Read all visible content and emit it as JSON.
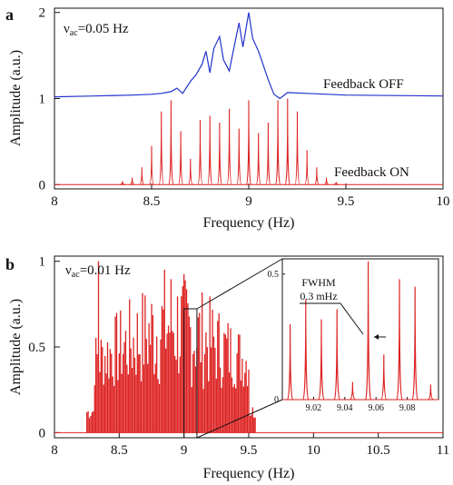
{
  "chart_data": [
    {
      "panel": "a",
      "type": "line",
      "xlabel": "Frequency (Hz)",
      "ylabel": "Amplitude (a.u.)",
      "xlim": [
        8,
        10
      ],
      "ylim": [
        -0.05,
        2.05
      ],
      "x_ticks": [
        8,
        8.5,
        9,
        9.5,
        10
      ],
      "x_tick_labels": [
        "8",
        "8.5",
        "9",
        "9.5",
        "10"
      ],
      "y_ticks": [
        0,
        1,
        2
      ],
      "y_tick_labels": [
        "0",
        "1",
        "2"
      ],
      "annotation_prefix": "ν",
      "annotation_sub": "ac",
      "annotation_suffix": "=0.05 Hz",
      "series": [
        {
          "name": "Feedback OFF",
          "color": "#2233cc",
          "x": [
            8.0,
            8.2,
            8.4,
            8.5,
            8.55,
            8.6,
            8.63,
            8.66,
            8.7,
            8.73,
            8.76,
            8.78,
            8.8,
            8.82,
            8.85,
            8.87,
            8.9,
            8.92,
            8.95,
            8.97,
            9.0,
            9.02,
            9.05,
            9.07,
            9.1,
            9.13,
            9.16,
            9.2,
            9.3,
            9.5,
            10.0
          ],
          "y": [
            1.02,
            1.03,
            1.04,
            1.05,
            1.06,
            1.08,
            1.12,
            1.06,
            1.2,
            1.28,
            1.4,
            1.55,
            1.3,
            1.58,
            1.72,
            1.45,
            1.32,
            1.55,
            1.88,
            1.6,
            2.0,
            1.7,
            1.55,
            1.42,
            1.22,
            1.05,
            1.0,
            1.07,
            1.06,
            1.04,
            1.03
          ]
        },
        {
          "name": "Feedback ON",
          "color": "#dd2222",
          "peaks_x": [
            8.35,
            8.4,
            8.45,
            8.5,
            8.55,
            8.6,
            8.65,
            8.7,
            8.75,
            8.8,
            8.85,
            8.9,
            8.95,
            9.0,
            9.05,
            9.1,
            9.15,
            9.2,
            9.25,
            9.3,
            9.35,
            9.4,
            9.45
          ],
          "peaks_y": [
            0.04,
            0.08,
            0.2,
            0.45,
            0.85,
            0.98,
            0.62,
            0.3,
            0.75,
            0.8,
            0.72,
            0.88,
            0.65,
            0.98,
            0.6,
            0.72,
            0.98,
            1.0,
            0.85,
            0.4,
            0.2,
            0.08,
            0.03
          ]
        }
      ]
    },
    {
      "panel": "b",
      "type": "line",
      "xlabel": "Frequency (Hz)",
      "ylabel": "Amplitude (a.u.)",
      "xlim": [
        8,
        11
      ],
      "ylim": [
        -0.03,
        1.03
      ],
      "x_ticks": [
        8,
        8.5,
        9,
        9.5,
        10,
        10.5,
        11
      ],
      "x_tick_labels": [
        "8",
        "8.5",
        "9",
        "9.5",
        "10",
        "10.5",
        "11"
      ],
      "y_ticks": [
        0,
        0.5,
        1
      ],
      "y_tick_labels": [
        "0",
        "0.5",
        "1"
      ],
      "annotation_prefix": "ν",
      "annotation_sub": "ac",
      "annotation_suffix": "=0.01 Hz",
      "series": [
        {
          "color": "#dd2222",
          "range": [
            8.25,
            9.55
          ],
          "spacing": 0.01,
          "envelope_note": "dense comb of lines, amplitudes 0.2–1.0"
        }
      ],
      "highlight_box": [
        9.0,
        9.1
      ],
      "inset": {
        "xlim": [
          9.0,
          9.1
        ],
        "ylim": [
          0,
          0.55
        ],
        "x_ticks": [
          9.02,
          9.04,
          9.06,
          9.08
        ],
        "x_tick_labels": [
          "9.02",
          "9.04",
          "9.06",
          "9.08"
        ],
        "y_ticks": [
          0,
          0.5
        ],
        "y_tick_labels": [
          "0",
          "0.5"
        ],
        "peaks_x": [
          9.005,
          9.015,
          9.025,
          9.035,
          9.045,
          9.055,
          9.065,
          9.075,
          9.085,
          9.095
        ],
        "peaks_y": [
          0.3,
          0.4,
          0.32,
          0.36,
          0.07,
          0.55,
          0.18,
          0.48,
          0.45,
          0.06
        ],
        "annotation_line1": "FWHM",
        "annotation_line2": "0.3 mHz"
      }
    }
  ]
}
